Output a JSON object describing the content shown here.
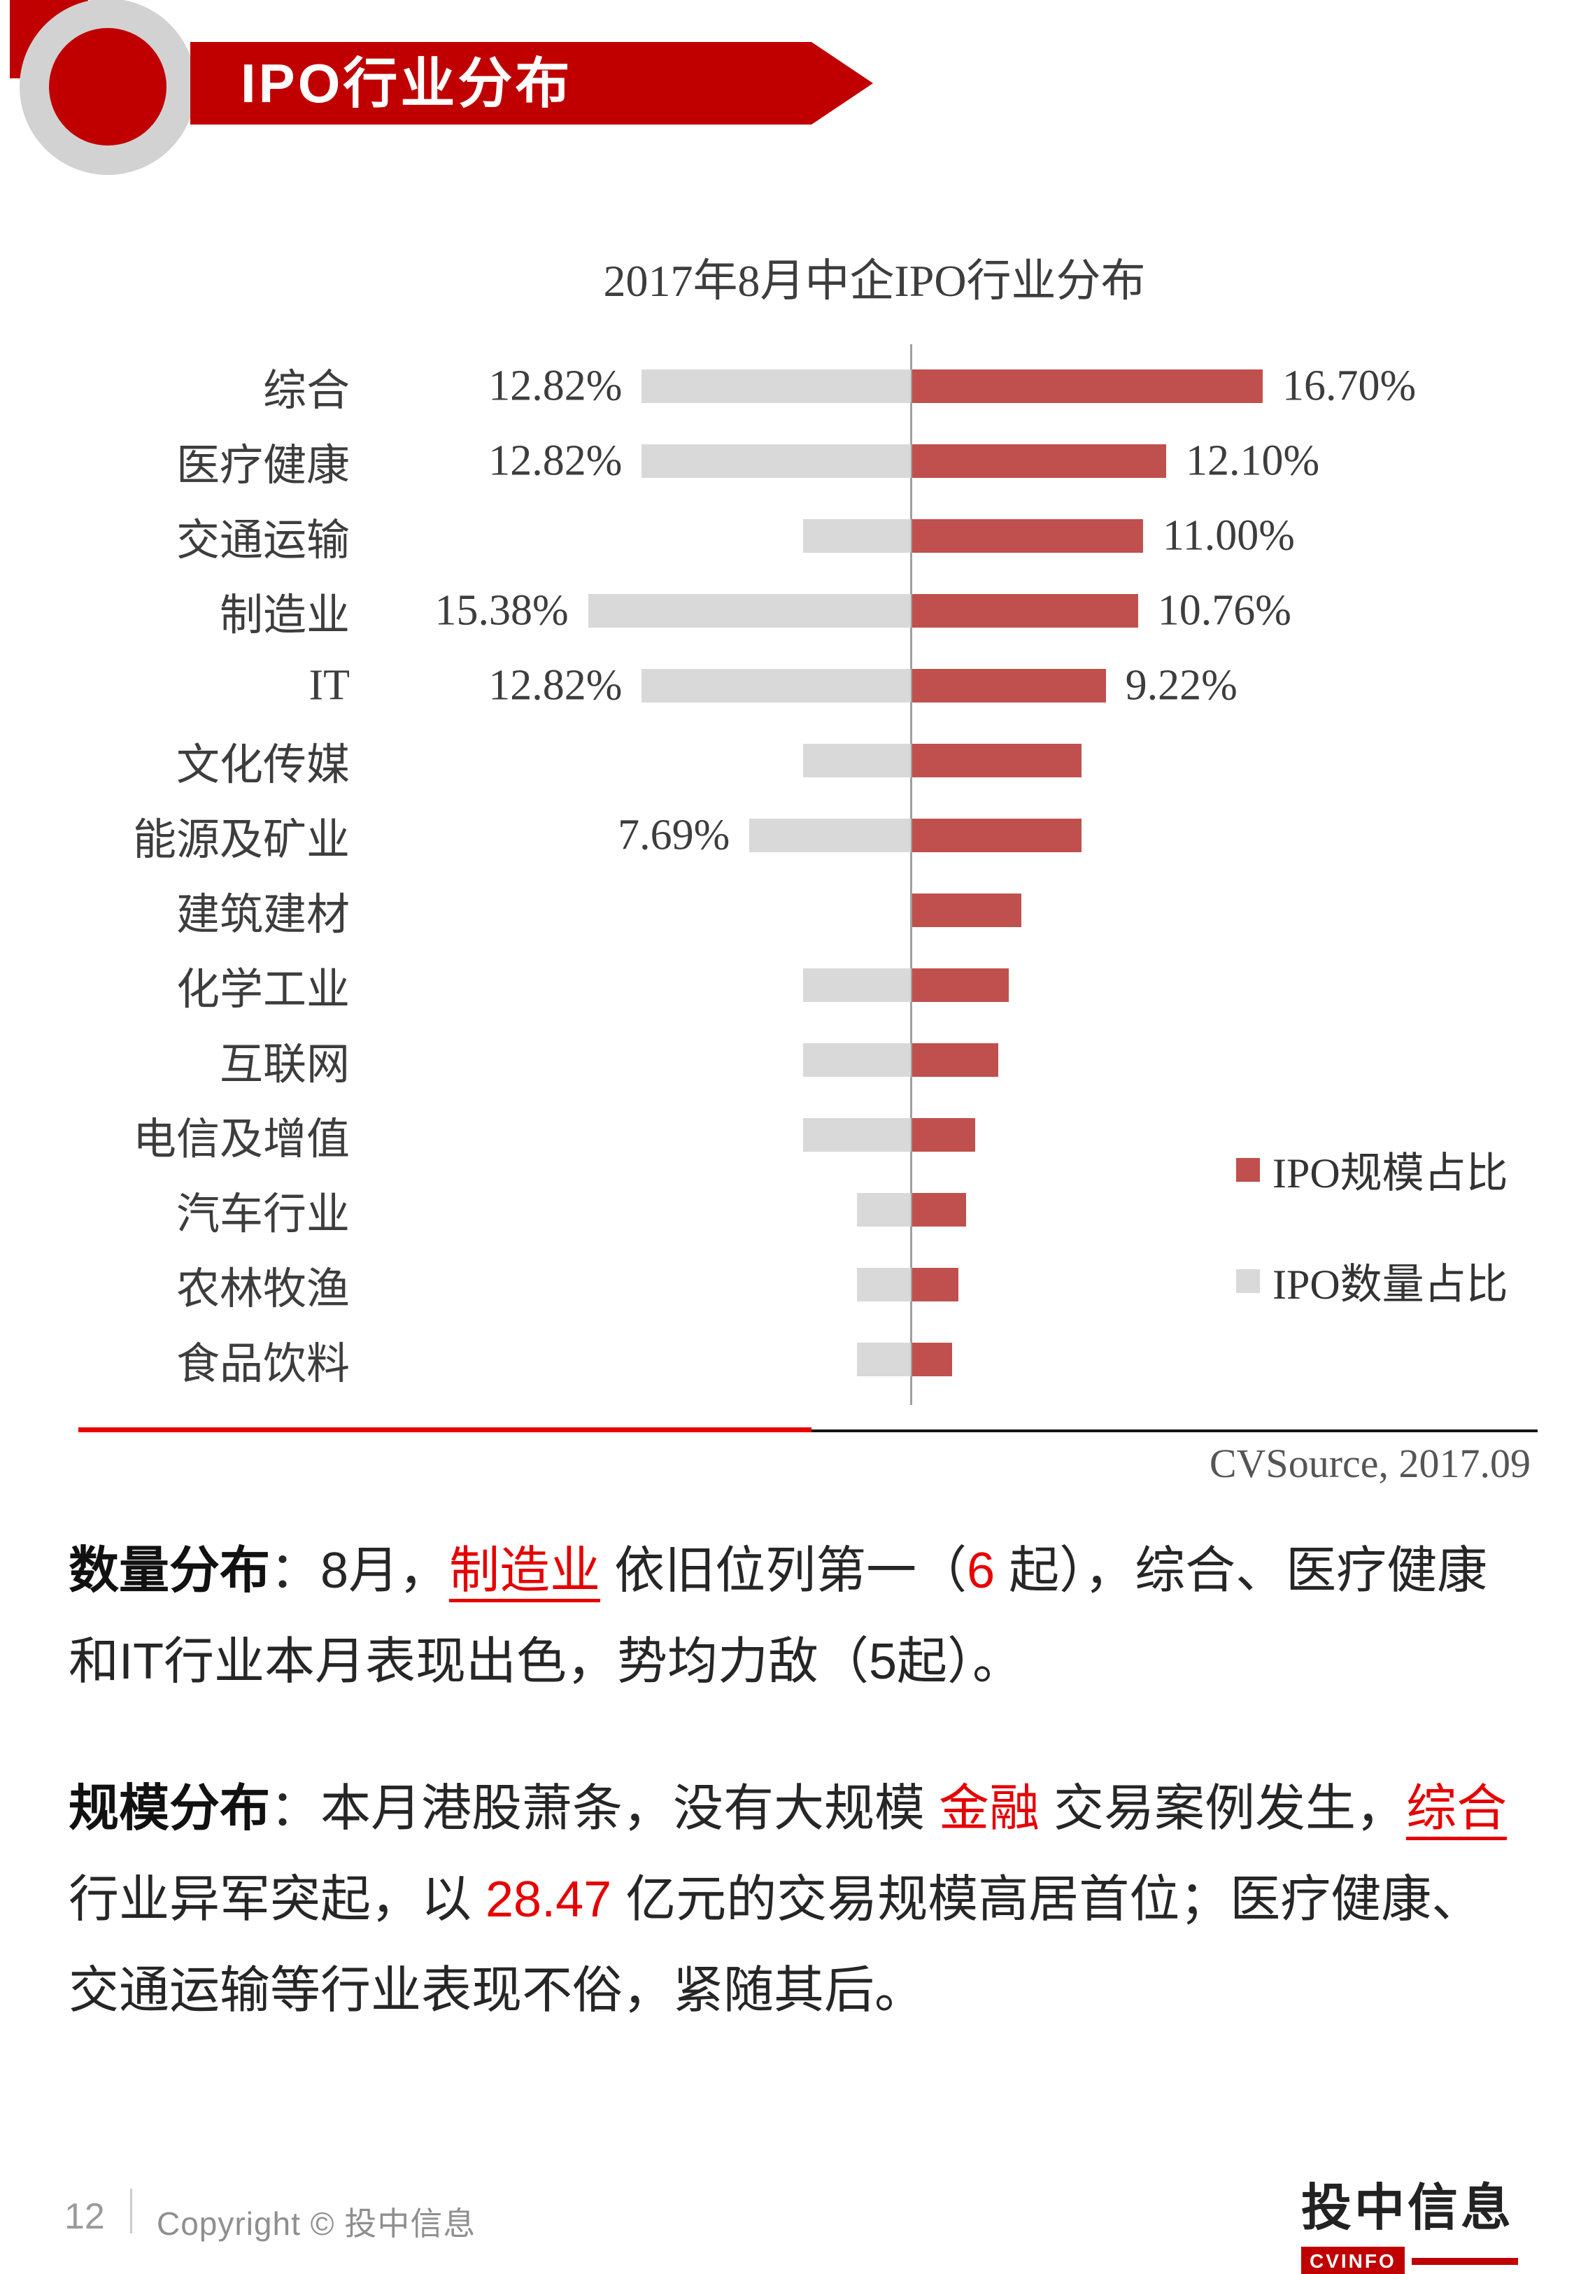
{
  "colors": {
    "banner_red": "#c00000",
    "bar_red": "#c0504d",
    "bar_gray": "#d9d9d9",
    "text_red": "#e60000",
    "axis_gray": "#a0a0a0"
  },
  "header": {
    "title": "IPO行业分布"
  },
  "chart_data": {
    "type": "bar",
    "orientation": "horizontal-diverging",
    "title": "2017年8月中企IPO行业分布",
    "unit": "%",
    "grid": false,
    "categories": [
      "综合",
      "医疗健康",
      "交通运输",
      "制造业",
      "IT",
      "文化传媒",
      "能源及矿业",
      "建筑建材",
      "化学工业",
      "互联网",
      "电信及增值",
      "汽车行业",
      "农林牧渔",
      "食品饮料"
    ],
    "series": [
      {
        "name": "IPO规模占比",
        "side": "right",
        "color": "#c0504d",
        "values": [
          16.7,
          12.1,
          11.0,
          10.76,
          9.22,
          8.07,
          8.07,
          5.2,
          4.6,
          4.1,
          3.0,
          2.55,
          2.2,
          1.9
        ],
        "labels": [
          "16.70%",
          "12.10%",
          "11.00%",
          "10.76%",
          "9.22%",
          "",
          "",
          "",
          "",
          "",
          "",
          "",
          "",
          ""
        ]
      },
      {
        "name": "IPO数量占比",
        "side": "left",
        "color": "#d9d9d9",
        "values": [
          12.82,
          12.82,
          5.13,
          15.38,
          12.82,
          5.13,
          7.69,
          0,
          5.13,
          5.13,
          5.13,
          2.56,
          2.56,
          2.56
        ],
        "labels": [
          "12.82%",
          "12.82%",
          "",
          "15.38%",
          "12.82%",
          "",
          "7.69%",
          "",
          "",
          "",
          "",
          "",
          "",
          ""
        ]
      }
    ],
    "legend": [
      {
        "label": "IPO规模占比",
        "color": "#c0504d"
      },
      {
        "label": "IPO数量占比",
        "color": "#d9d9d9"
      }
    ],
    "legend_position": "right",
    "source": "CVSource, 2017.09"
  },
  "paragraphs": [
    {
      "segments": [
        {
          "text": "数量分布",
          "style": "bold"
        },
        {
          "text": "：8月，",
          "style": "normal"
        },
        {
          "text": "制造业",
          "style": "red-underline"
        },
        {
          "text": " 依旧位列第一（",
          "style": "normal"
        },
        {
          "text": "6",
          "style": "red"
        },
        {
          "text": " 起），综合、医疗健康和IT行业本月表现出色，势均力敌（5起）。",
          "style": "normal"
        }
      ]
    },
    {
      "segments": [
        {
          "text": "规模分布",
          "style": "bold"
        },
        {
          "text": "：本月港股萧条，没有大规模 ",
          "style": "normal"
        },
        {
          "text": "金融",
          "style": "red"
        },
        {
          "text": " 交易案例发生，",
          "style": "normal"
        },
        {
          "text": "综合",
          "style": "red-underline"
        },
        {
          "text": " 行业异军突起，以 ",
          "style": "normal"
        },
        {
          "text": "28.47",
          "style": "red"
        },
        {
          "text": " 亿元的交易规模高居首位；医疗健康、交通运输等行业表现不俗，紧随其后。",
          "style": "normal"
        }
      ]
    }
  ],
  "footer": {
    "page_number": "12",
    "copyright": "Copyright © 投中信息",
    "logo_cn": "投中信息",
    "logo_en": "CVINFO"
  }
}
